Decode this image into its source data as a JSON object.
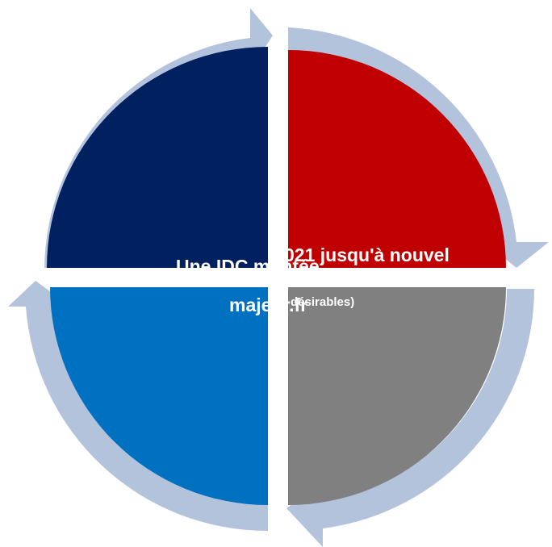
{
  "diagram": {
    "colors": {
      "ring": "#b4c3dc",
      "top_left": "#002060",
      "top_right": "#c00000",
      "bottom_right": "#808080",
      "bottom_left": "#0070c0",
      "text": "#ffffff"
    },
    "labels": {
      "line_a": "Une IDC montée",
      "line_b": "majeur.fr",
      "line_c": "021 jusqu'à nouvel",
      "line_d": "désirables)"
    }
  }
}
